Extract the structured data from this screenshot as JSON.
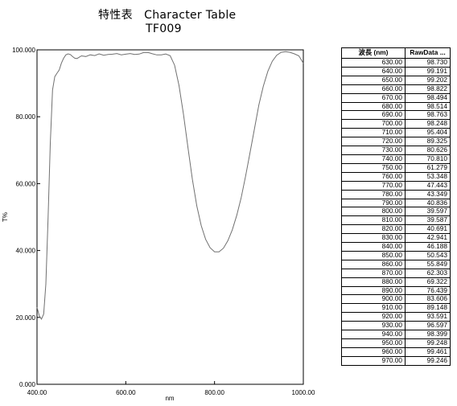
{
  "header": {
    "title_ja": "特性表",
    "title_en": "Character Table",
    "product": "TF009"
  },
  "chart_data": {
    "type": "line",
    "xlabel": "nm",
    "ylabel": "T%",
    "xlim": [
      400,
      1000
    ],
    "ylim": [
      0,
      100
    ],
    "xticks": [
      "400.00",
      "600.00",
      "800.00",
      "1000.00"
    ],
    "yticks": [
      "0.000",
      "20.000",
      "40.000",
      "60.000",
      "80.000",
      "100.000"
    ],
    "grid": false,
    "color": "#707070",
    "series": [
      {
        "x": [
          400,
          405,
          410,
          415,
          420,
          425,
          430,
          435,
          440,
          445,
          450,
          455,
          460,
          465,
          470,
          475,
          480,
          485,
          490,
          495,
          500,
          510,
          520,
          530,
          540,
          550,
          560,
          570,
          580,
          590,
          600,
          610,
          620,
          630,
          640,
          650,
          660,
          670,
          680,
          690,
          700,
          710,
          720,
          730,
          740,
          750,
          760,
          770,
          780,
          790,
          800,
          810,
          820,
          830,
          840,
          850,
          860,
          870,
          880,
          890,
          900,
          910,
          920,
          930,
          940,
          950,
          960,
          970,
          980,
          990,
          1000
        ],
        "y": [
          23.0,
          20.5,
          19.5,
          21.0,
          30.0,
          50.0,
          72.0,
          88.0,
          92.0,
          93.0,
          94.0,
          96.0,
          97.5,
          98.5,
          98.8,
          98.6,
          98.0,
          97.5,
          97.4,
          97.8,
          98.2,
          98.0,
          98.5,
          98.3,
          98.8,
          98.4,
          98.6,
          98.7,
          98.9,
          98.5,
          98.7,
          98.9,
          98.6,
          98.73,
          99.191,
          99.202,
          98.822,
          98.494,
          98.514,
          98.763,
          98.248,
          95.404,
          89.325,
          80.626,
          70.81,
          61.279,
          53.348,
          47.443,
          43.349,
          40.836,
          39.597,
          39.587,
          40.691,
          42.941,
          46.188,
          50.543,
          55.849,
          62.303,
          69.322,
          76.439,
          83.606,
          89.148,
          93.591,
          96.597,
          98.399,
          99.248,
          99.461,
          99.246,
          98.8,
          98.2,
          96.0
        ]
      }
    ]
  },
  "table": {
    "headers": [
      "波長 (nm)",
      "RawData ..."
    ],
    "rows": [
      [
        "630.00",
        "98.730"
      ],
      [
        "640.00",
        "99.191"
      ],
      [
        "650.00",
        "99.202"
      ],
      [
        "660.00",
        "98.822"
      ],
      [
        "670.00",
        "98.494"
      ],
      [
        "680.00",
        "98.514"
      ],
      [
        "690.00",
        "98.763"
      ],
      [
        "700.00",
        "98.248"
      ],
      [
        "710.00",
        "95.404"
      ],
      [
        "720.00",
        "89.325"
      ],
      [
        "730.00",
        "80.626"
      ],
      [
        "740.00",
        "70.810"
      ],
      [
        "750.00",
        "61.279"
      ],
      [
        "760.00",
        "53.348"
      ],
      [
        "770.00",
        "47.443"
      ],
      [
        "780.00",
        "43.349"
      ],
      [
        "790.00",
        "40.836"
      ],
      [
        "800.00",
        "39.597"
      ],
      [
        "810.00",
        "39.587"
      ],
      [
        "820.00",
        "40.691"
      ],
      [
        "830.00",
        "42.941"
      ],
      [
        "840.00",
        "46.188"
      ],
      [
        "850.00",
        "50.543"
      ],
      [
        "860.00",
        "55.849"
      ],
      [
        "870.00",
        "62.303"
      ],
      [
        "880.00",
        "69.322"
      ],
      [
        "890.00",
        "76.439"
      ],
      [
        "900.00",
        "83.606"
      ],
      [
        "910.00",
        "89.148"
      ],
      [
        "920.00",
        "93.591"
      ],
      [
        "930.00",
        "96.597"
      ],
      [
        "940.00",
        "98.399"
      ],
      [
        "950.00",
        "99.248"
      ],
      [
        "960.00",
        "99.461"
      ],
      [
        "970.00",
        "99.246"
      ]
    ]
  }
}
